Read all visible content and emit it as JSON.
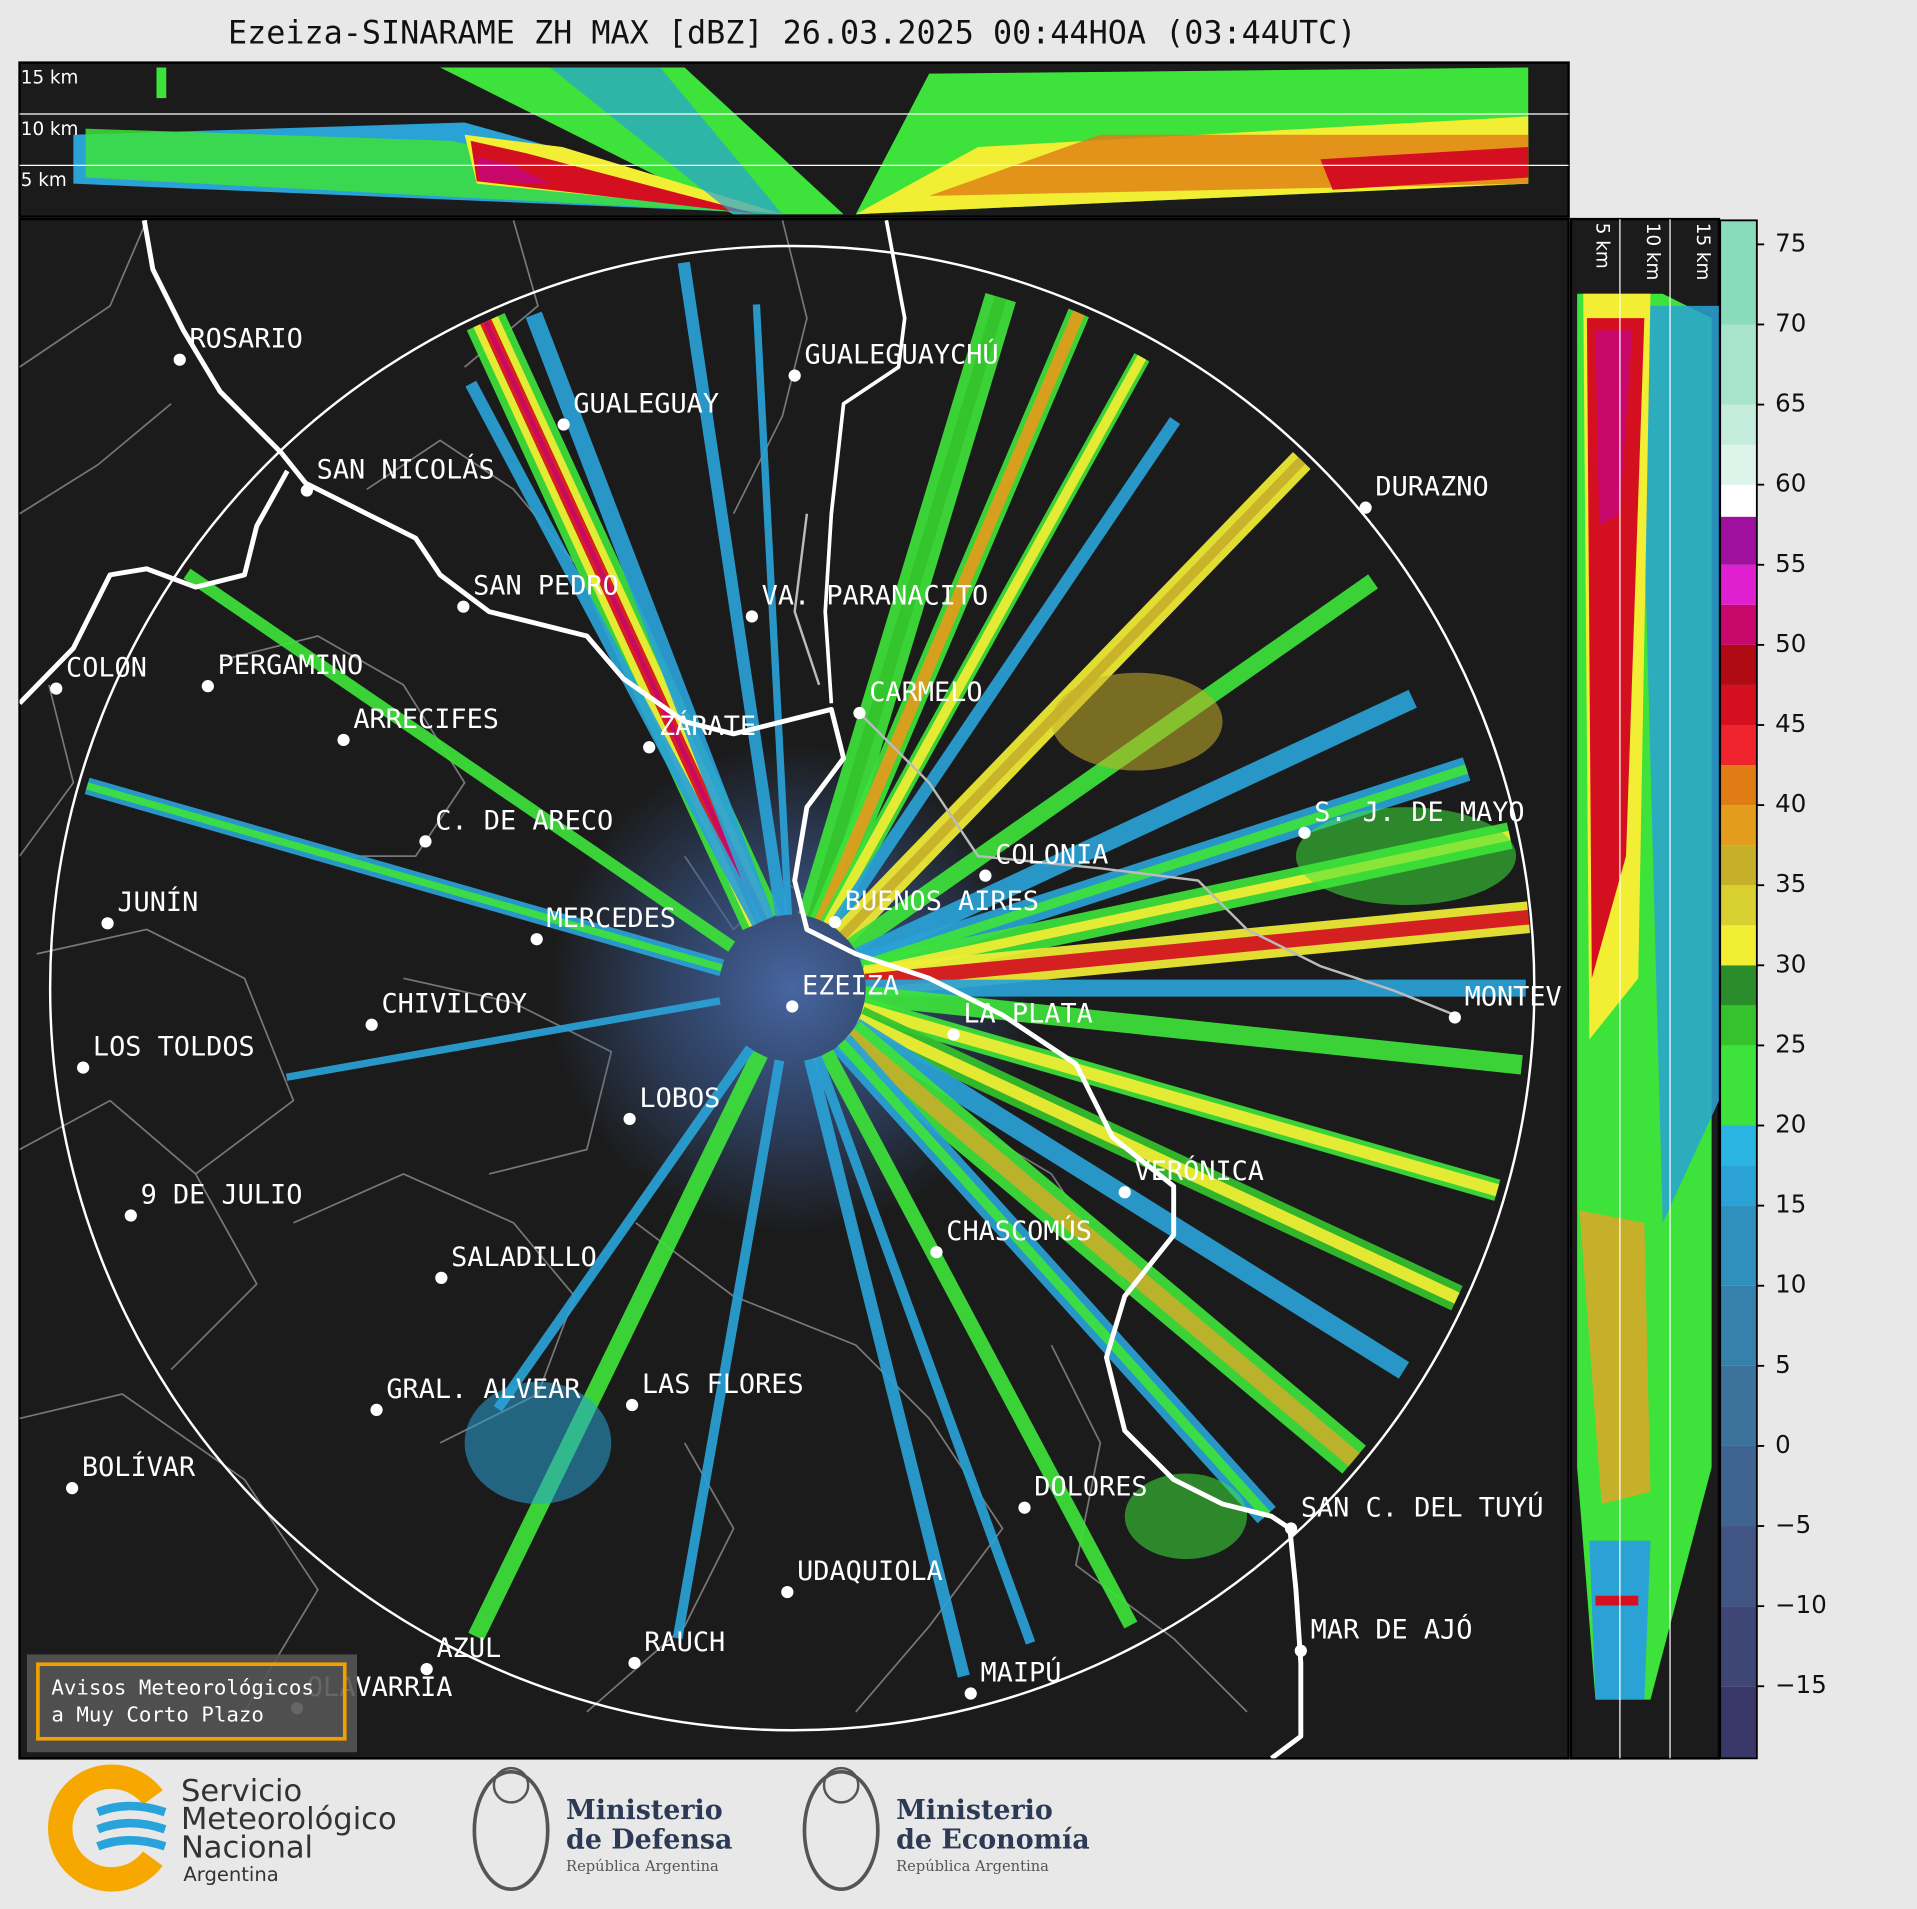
{
  "header": {
    "title": "Ezeiza-SINARAME ZH MAX [dBZ] 26.03.2025 00:44HOA (03:44UTC)"
  },
  "top_panel": {
    "height_labels": [
      "15 km",
      "10 km",
      "5 km"
    ]
  },
  "side_panel": {
    "height_labels": [
      "5 km",
      "10 km",
      "15 km"
    ]
  },
  "map": {
    "places": [
      "ROSARIO",
      "GUALEGUAYCHÚ",
      "GUALEGUAY",
      "SAN NICOLÁS",
      "DURAZNO",
      "SAN PEDRO",
      "VA. PARANACITO",
      "COLON",
      "PERGAMINO",
      "CARMELO",
      "ARRECIFES",
      "ZÁRATE",
      "C. DE ARECO",
      "S. J. DE MAYO",
      "COLONIA",
      "JUNÍN",
      "BUENOS AIRES",
      "MERCEDES",
      "EZEIZA",
      "MONTEV",
      "LA PLATA",
      "CHIVILCOY",
      "LOS TOLDOS",
      "LOBOS",
      "VERÓNICA",
      "9 DE JULIO",
      "CHASCOMÚS",
      "SALADILLO",
      "GRAL. ALVEAR",
      "LAS FLORES",
      "BOLÍVAR",
      "DOLORES",
      "SAN C. DEL TUYÚ",
      "UDAQUIOLA",
      "MAR DE AJÓ",
      "RAUCH",
      "AZUL",
      "OLAVARRÍA",
      "MAIPÚ"
    ]
  },
  "colorbar": {
    "lim": [
      -19.5,
      76.5
    ],
    "bounds": [
      -19.5,
      -15,
      -10,
      -5,
      0,
      5,
      10,
      15,
      17.5,
      20,
      25,
      27.5,
      30,
      32.5,
      35,
      37.5,
      40,
      42.5,
      45,
      47.5,
      50,
      52.5,
      55,
      58,
      60,
      62.5,
      65,
      70,
      76.5
    ],
    "colors": [
      "#3a3868",
      "#3e4676",
      "#405584",
      "#3f6491",
      "#3c739c",
      "#3581ab",
      "#2f8fbd",
      "#2aa2d6",
      "#2ab4e2",
      "#3de23a",
      "#34c32c",
      "#2a8c2a",
      "#f2ee34",
      "#d8d030",
      "#c6b02a",
      "#e49c1c",
      "#e07c14",
      "#f0242c",
      "#d41020",
      "#b00a14",
      "#c8086a",
      "#e020d0",
      "#a0109e",
      "#ffffff",
      "#dcf4ea",
      "#c4ecdc",
      "#a8e4cc",
      "#88dcbc"
    ],
    "ticks": [
      75,
      70,
      65,
      60,
      55,
      50,
      45,
      40,
      35,
      30,
      25,
      20,
      15,
      10,
      5,
      0,
      {
        "value": -5,
        "label": "−5"
      },
      {
        "value": -10,
        "label": "−10"
      },
      {
        "value": -15,
        "label": "−15"
      }
    ]
  },
  "warning_box": {
    "lines": [
      "Avisos Meteorológicos",
      "a Muy Corto Plazo"
    ]
  },
  "logos": {
    "smn": [
      "Servicio",
      "Meteorológico",
      "Nacional",
      "Argentina"
    ],
    "defensa": [
      "Ministerio",
      "de Defensa",
      "República Argentina"
    ],
    "economia": [
      "Ministerio",
      "de Economía",
      "República Argentina"
    ]
  }
}
